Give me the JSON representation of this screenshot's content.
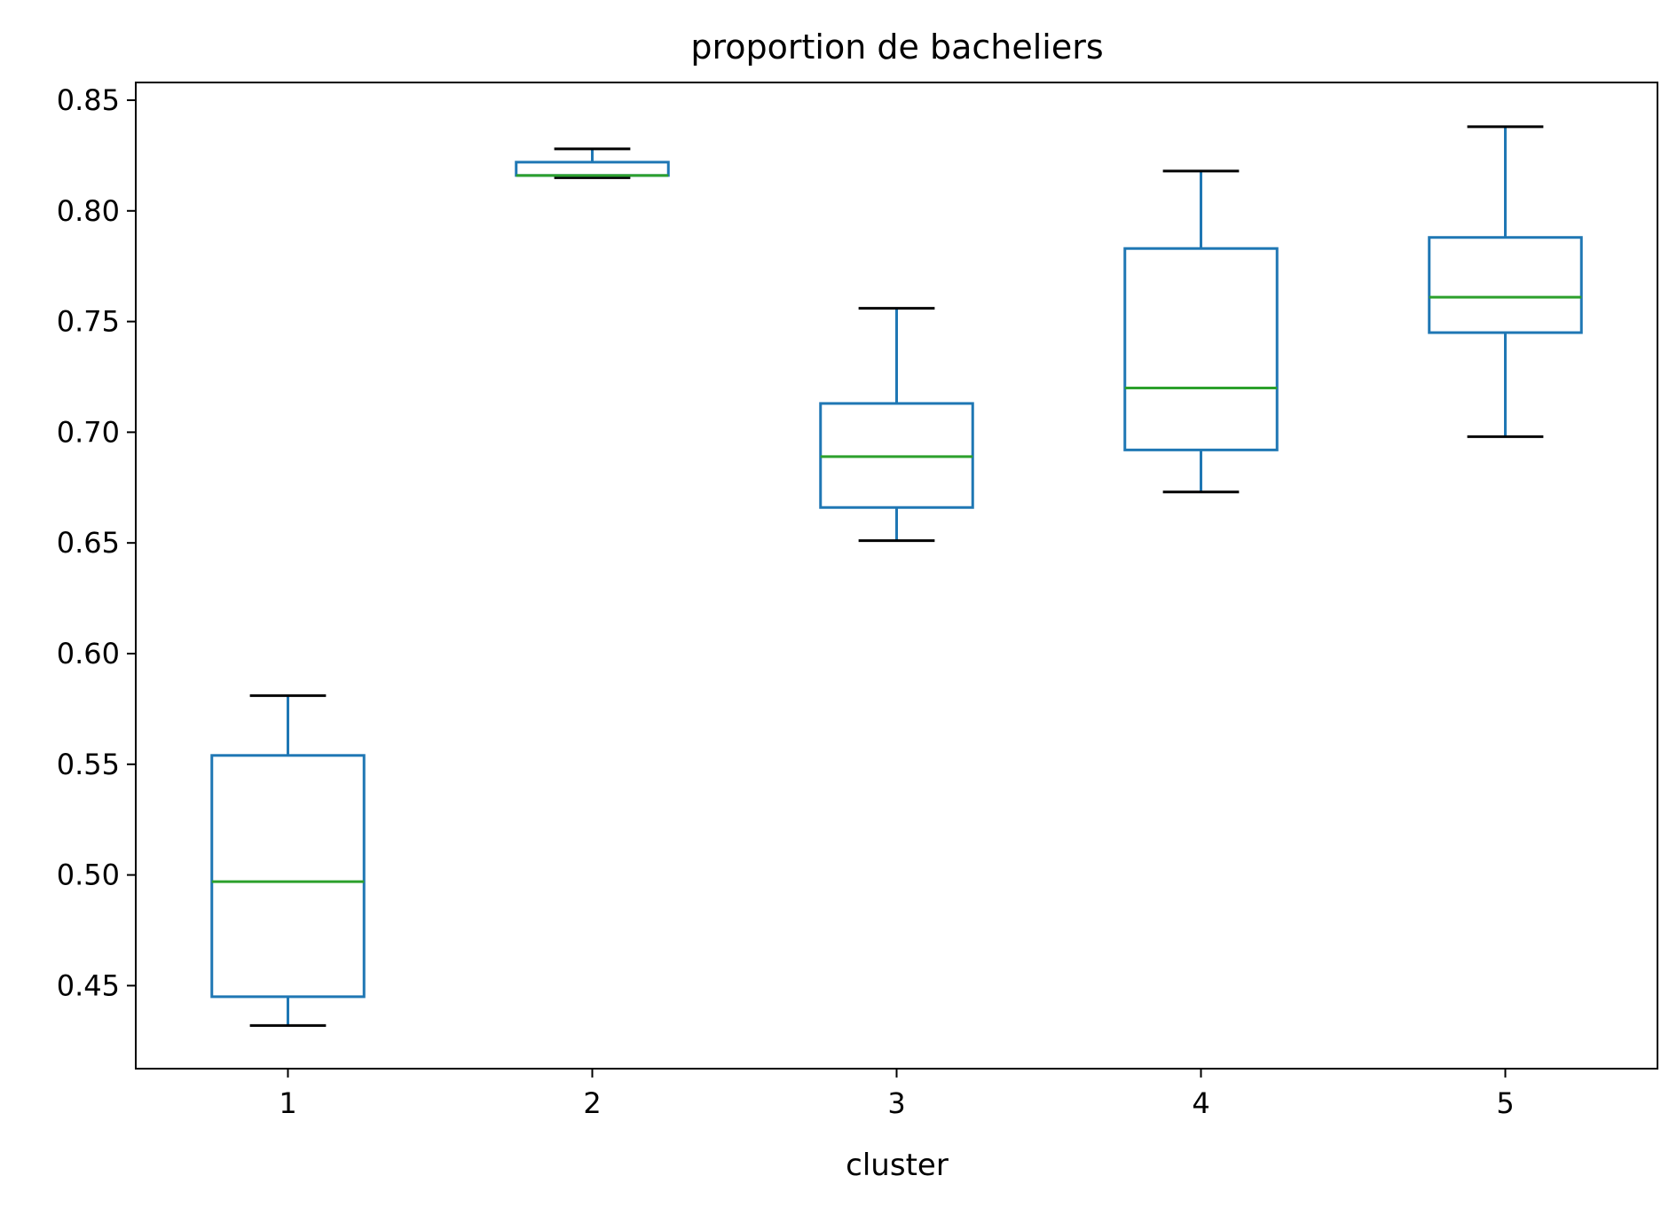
{
  "chart_data": {
    "type": "box",
    "title": "proportion de bacheliers",
    "xlabel": "cluster",
    "ylabel": "",
    "ylim": [
      0.4125,
      0.858
    ],
    "yticks": [
      "0.45",
      "0.50",
      "0.55",
      "0.60",
      "0.65",
      "0.70",
      "0.75",
      "0.80",
      "0.85"
    ],
    "categories": [
      "1",
      "2",
      "3",
      "4",
      "5"
    ],
    "boxes": [
      {
        "category": "1",
        "whisker_low": 0.432,
        "q1": 0.445,
        "median": 0.497,
        "q3": 0.554,
        "whisker_high": 0.581
      },
      {
        "category": "2",
        "whisker_low": 0.815,
        "q1": 0.816,
        "median": 0.816,
        "q3": 0.822,
        "whisker_high": 0.828
      },
      {
        "category": "3",
        "whisker_low": 0.651,
        "q1": 0.666,
        "median": 0.689,
        "q3": 0.713,
        "whisker_high": 0.756
      },
      {
        "category": "4",
        "whisker_low": 0.673,
        "q1": 0.692,
        "median": 0.72,
        "q3": 0.783,
        "whisker_high": 0.818
      },
      {
        "category": "5",
        "whisker_low": 0.698,
        "q1": 0.745,
        "median": 0.761,
        "q3": 0.788,
        "whisker_high": 0.838
      }
    ],
    "colors": {
      "box": "#1f77b4",
      "median": "#2ca02c",
      "cap": "#000000",
      "axis": "#000000"
    },
    "grid": false,
    "legend": "none"
  }
}
